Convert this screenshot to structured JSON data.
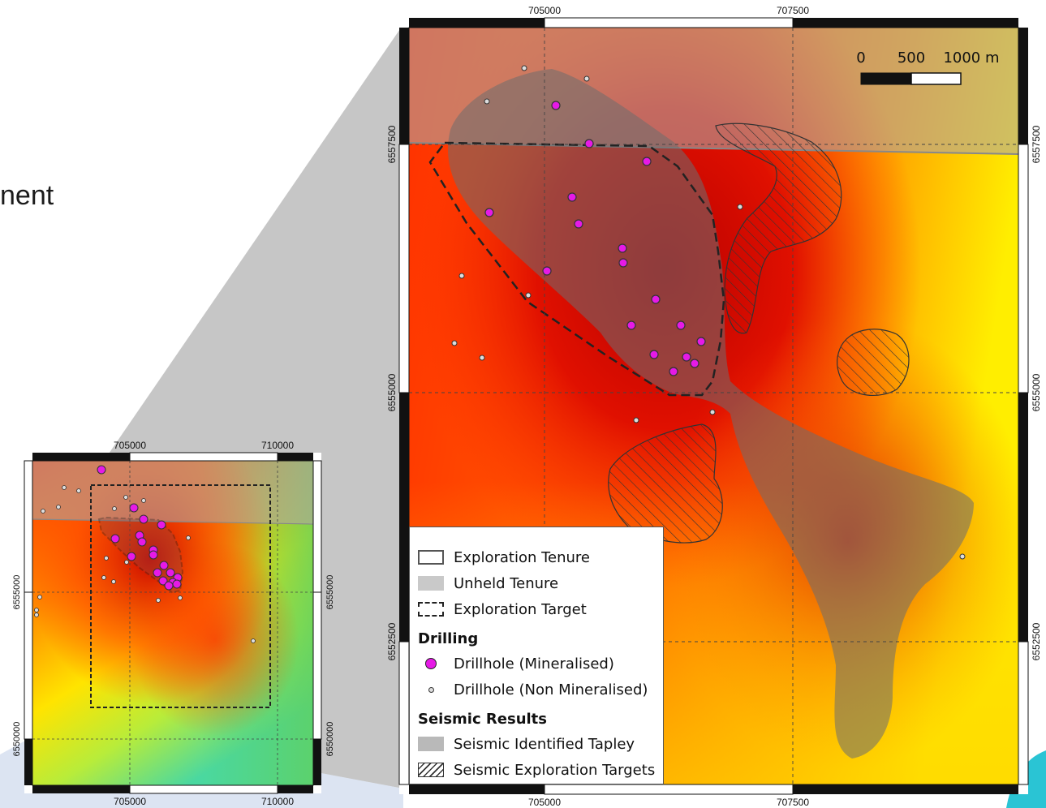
{
  "heading_fragment": "nent",
  "colors": {
    "ramp_high": "#c00000",
    "ramp_mid": "#ff7800",
    "ramp_low": "#ffff00",
    "ramp_outer": "#70e050",
    "mineralised": "#e61ae6",
    "non_mineralised": "#dddddd",
    "seismic": "#7a7a7a"
  },
  "overview_map": {
    "x_ticks": [
      "705000",
      "710000"
    ],
    "y_ticks": [
      "6555000",
      "6550000"
    ]
  },
  "detail_map": {
    "x_ticks": [
      "705000",
      "707500"
    ],
    "y_ticks": [
      "6557500",
      "6555000",
      "6552500"
    ],
    "scalebar": {
      "labels": [
        "0",
        "500",
        "1000 m"
      ]
    }
  },
  "legend": {
    "items": [
      {
        "label": "Exploration Tenure"
      },
      {
        "label": "Unheld Tenure"
      },
      {
        "label": "Exploration Target"
      }
    ],
    "drilling_heading": "Drilling",
    "drilling_items": [
      {
        "label": "Drillhole (Mineralised)"
      },
      {
        "label": "Drillhole (Non Mineralised)"
      }
    ],
    "seismic_heading": "Seismic Results",
    "seismic_items": [
      {
        "label": "Seismic Identified Tapley"
      },
      {
        "label": "Seismic Exploration Targets"
      }
    ]
  }
}
